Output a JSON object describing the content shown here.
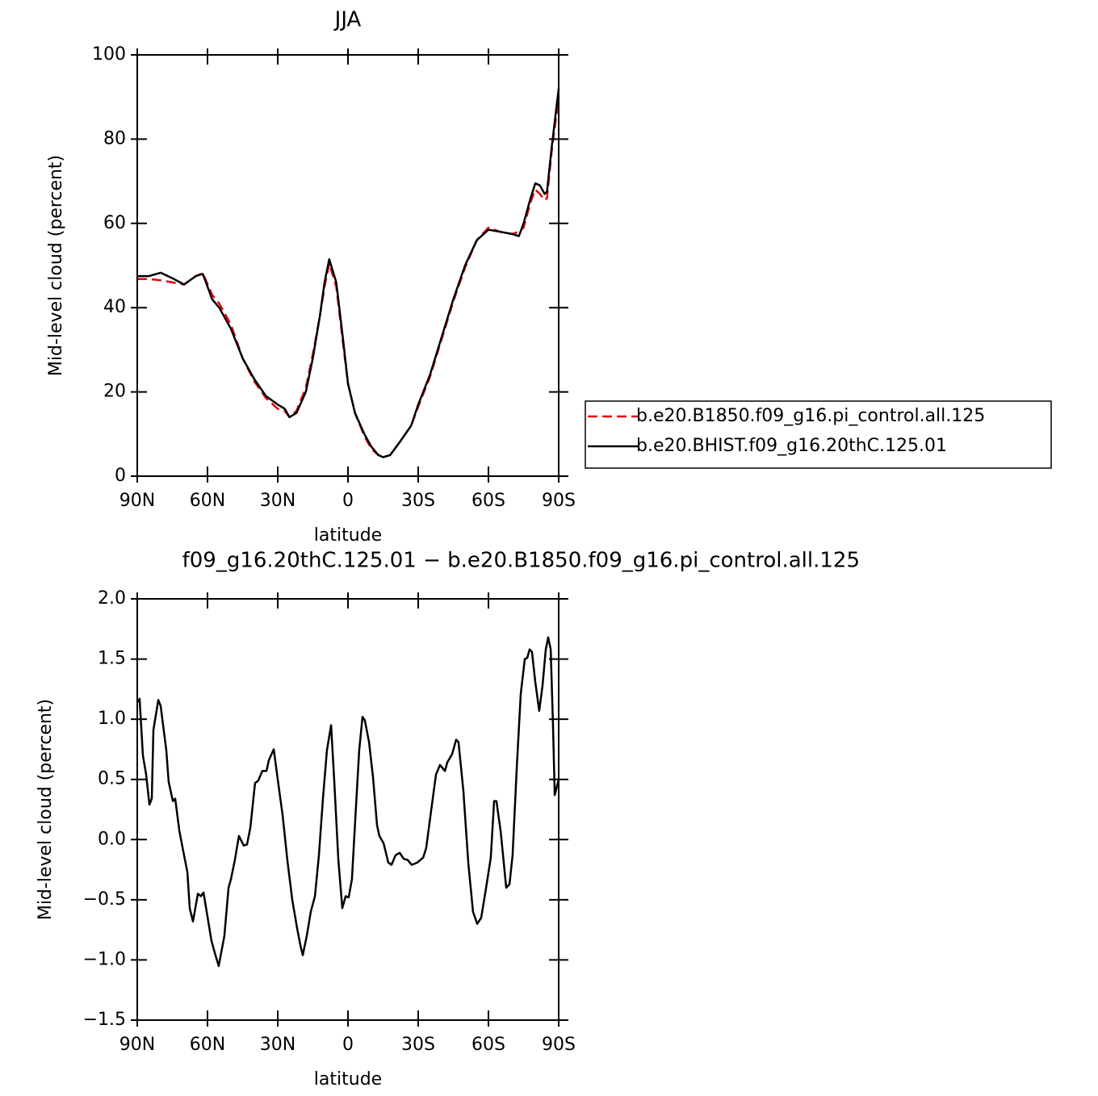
{
  "chart_data": [
    {
      "type": "line",
      "title": "JJA",
      "xlabel": "latitude",
      "ylabel": "Mid-level cloud (percent)",
      "x": [
        90,
        85,
        80,
        75,
        70,
        65,
        62,
        58,
        55,
        50,
        45,
        40,
        35,
        30,
        27,
        25,
        22,
        18,
        15,
        12,
        10,
        8,
        5,
        2,
        0,
        -3,
        -7,
        -10,
        -13,
        -15,
        -18,
        -22,
        -27,
        -30,
        -35,
        -40,
        -45,
        -50,
        -55,
        -60,
        -65,
        -70,
        -73,
        -75,
        -78,
        -80,
        -82,
        -84,
        -85,
        -87,
        -90
      ],
      "series": [
        {
          "name": "b.e20.B1850.f09_g16.pi_control.all.125",
          "color": "#e8000b",
          "linestyle": "dashed",
          "values": [
            46.8,
            46.8,
            46.5,
            46,
            45.5,
            47.5,
            48.2,
            43,
            41,
            36,
            28,
            22.5,
            18.5,
            16,
            15.5,
            14,
            15.5,
            21,
            29,
            38,
            45,
            50.5,
            45,
            31,
            22,
            15,
            9.5,
            6.5,
            5,
            4.5,
            5,
            8,
            12,
            16.5,
            23.5,
            32.5,
            41.5,
            49.5,
            56,
            59,
            58,
            57.5,
            58,
            59,
            65,
            68,
            67,
            65.5,
            66,
            77,
            90
          ]
        },
        {
          "name": "b.e20.BHIST.f09_g16.20thC.125.01",
          "color": "#000000",
          "linestyle": "solid",
          "values": [
            47.5,
            47.5,
            48.3,
            47,
            45.5,
            47.5,
            48,
            42,
            40,
            35,
            28,
            23,
            19,
            17,
            16,
            14,
            15,
            20,
            28,
            38,
            46,
            51.5,
            46,
            32,
            22,
            15,
            10,
            7,
            5,
            4.5,
            5,
            8,
            12,
            17,
            24,
            33,
            42,
            50,
            56,
            58.5,
            58,
            57.5,
            57,
            60,
            66,
            69.5,
            69,
            67,
            67.5,
            78,
            92
          ]
        }
      ],
      "xlim": [
        90,
        -90
      ],
      "xticks": [
        {
          "value": 90,
          "label": "90N"
        },
        {
          "value": 60,
          "label": "60N"
        },
        {
          "value": 30,
          "label": "30N"
        },
        0,
        {
          "value": -30,
          "label": "30S"
        },
        {
          "value": -60,
          "label": "60S"
        },
        {
          "value": -90,
          "label": "90S"
        }
      ],
      "ylim": [
        0,
        100
      ],
      "yticks": [
        0,
        20,
        40,
        60,
        80,
        100
      ],
      "legend": "outside right"
    },
    {
      "type": "line",
      "title": "f09_g16.20thC.125.01 − b.e20.B1850.f09_g16.pi_control.all.125",
      "xlabel": "latitude",
      "ylabel": "Mid-level cloud (percent)",
      "color": "#000000",
      "x": [
        90,
        89,
        87.6,
        86.2,
        84.8,
        83.8,
        83.1,
        81,
        80,
        77.6,
        76.6,
        74.8,
        73.8,
        72,
        70.3,
        68.6,
        67.6,
        66.2,
        64.1,
        62.8,
        61.7,
        60,
        58.3,
        56.9,
        55.2,
        52.8,
        51,
        50,
        48.3,
        46.6,
        44.5,
        43.1,
        41.7,
        39.7,
        38.3,
        36.6,
        34.8,
        33.8,
        31.7,
        30,
        27.9,
        25.9,
        23.8,
        21.7,
        20.3,
        19.3,
        17.6,
        15.9,
        14.1,
        12.4,
        10.7,
        9,
        7.2,
        5.9,
        4.1,
        2.4,
        1,
        -0.3,
        -1.7,
        -3.4,
        -4.8,
        -6.2,
        -7.2,
        -9,
        -10.7,
        -12.4,
        -13.4,
        -15.2,
        -17.2,
        -18.6,
        -20.3,
        -22.1,
        -23.8,
        -25.5,
        -27.2,
        -29.7,
        -32.1,
        -33.4,
        -35.5,
        -37.6,
        -39.3,
        -41.4,
        -42.4,
        -44.5,
        -46.2,
        -47.2,
        -49.3,
        -51.4,
        -53.4,
        -55.2,
        -56.9,
        -59,
        -61,
        -62.4,
        -63.4,
        -65.2,
        -66.6,
        -67.6,
        -69,
        -70.3,
        -72.1,
        -73.8,
        -75.5,
        -76.6,
        -77.6,
        -78.6,
        -80,
        -81.7,
        -83.1,
        -84.5,
        -85.5,
        -86.6,
        -87.6,
        -88.3,
        -90
      ],
      "values": [
        1.14,
        1.17,
        0.7,
        0.54,
        0.29,
        0.34,
        0.91,
        1.16,
        1.11,
        0.74,
        0.48,
        0.32,
        0.34,
        0.07,
        -0.1,
        -0.27,
        -0.57,
        -0.68,
        -0.45,
        -0.47,
        -0.44,
        -0.64,
        -0.84,
        -0.94,
        -1.05,
        -0.8,
        -0.4,
        -0.33,
        -0.17,
        0.03,
        -0.05,
        -0.04,
        0.1,
        0.47,
        0.49,
        0.57,
        0.57,
        0.66,
        0.75,
        0.5,
        0.2,
        -0.17,
        -0.5,
        -0.74,
        -0.88,
        -0.96,
        -0.8,
        -0.6,
        -0.47,
        -0.13,
        0.34,
        0.74,
        0.95,
        0.5,
        -0.17,
        -0.57,
        -0.47,
        -0.48,
        -0.33,
        0.27,
        0.74,
        1.02,
        0.99,
        0.81,
        0.52,
        0.12,
        0.03,
        -0.03,
        -0.19,
        -0.21,
        -0.13,
        -0.11,
        -0.16,
        -0.17,
        -0.21,
        -0.19,
        -0.15,
        -0.07,
        0.24,
        0.54,
        0.62,
        0.57,
        0.64,
        0.71,
        0.83,
        0.81,
        0.4,
        -0.2,
        -0.6,
        -0.7,
        -0.65,
        -0.4,
        -0.15,
        0.32,
        0.32,
        0.07,
        -0.2,
        -0.4,
        -0.37,
        -0.13,
        0.6,
        1.21,
        1.5,
        1.51,
        1.58,
        1.56,
        1.31,
        1.07,
        1.28,
        1.58,
        1.68,
        1.58,
        0.94,
        0.37,
        0.5
      ],
      "xlim": [
        90,
        -90
      ],
      "xticks": [
        {
          "value": 90,
          "label": "90N"
        },
        {
          "value": 60,
          "label": "60N"
        },
        {
          "value": 30,
          "label": "30N"
        },
        0,
        {
          "value": -30,
          "label": "30S"
        },
        {
          "value": -60,
          "label": "60S"
        },
        {
          "value": -90,
          "label": "90S"
        }
      ],
      "ylim": [
        -1.5,
        2.0
      ],
      "yticks": [
        {
          "value": -1.5,
          "label": "−1.5"
        },
        {
          "value": -1.0,
          "label": "−1.0"
        },
        {
          "value": -0.5,
          "label": "−0.5"
        },
        {
          "value": 0.0,
          "label": "0.0"
        },
        {
          "value": 0.5,
          "label": "0.5"
        },
        {
          "value": 1.0,
          "label": "1.0"
        },
        1.5,
        {
          "value": 2.0,
          "label": "2.0"
        }
      ]
    }
  ]
}
